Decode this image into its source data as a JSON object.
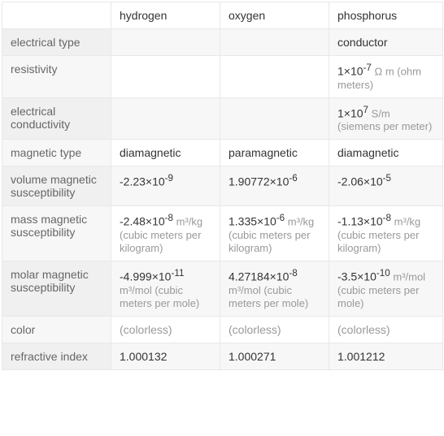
{
  "table": {
    "columns": [
      "",
      "hydrogen",
      "oxygen",
      "phosphorus"
    ],
    "rows": [
      {
        "label": "electrical type",
        "hydrogen": "",
        "oxygen": "",
        "phosphorus": "conductor"
      },
      {
        "label": "resistivity",
        "hydrogen": "",
        "oxygen": "",
        "phosphorus_val": "1×10",
        "phosphorus_exp": "-7",
        "phosphorus_unit": " Ω m (ohm meters)"
      },
      {
        "label": "electrical conductivity",
        "hydrogen": "",
        "oxygen": "",
        "phosphorus_val": "1×10",
        "phosphorus_exp": "7",
        "phosphorus_unit": " S/m (siemens per meter)"
      },
      {
        "label": "magnetic type",
        "hydrogen": "diamagnetic",
        "oxygen": "paramagnetic",
        "phosphorus": "diamagnetic"
      },
      {
        "label": "volume magnetic susceptibility",
        "hydrogen_val": "-2.23×10",
        "hydrogen_exp": "-9",
        "oxygen_val": "1.90772×10",
        "oxygen_exp": "-6",
        "phosphorus_val": "-2.06×10",
        "phosphorus_exp": "-5"
      },
      {
        "label": "mass magnetic susceptibility",
        "hydrogen_val": "-2.48×10",
        "hydrogen_exp": "-8",
        "hydrogen_unit": " m³/kg (cubic meters per kilogram)",
        "oxygen_val": "1.335×10",
        "oxygen_exp": "-6",
        "oxygen_unit": " m³/kg (cubic meters per kilogram)",
        "phosphorus_val": "-1.13×10",
        "phosphorus_exp": "-8",
        "phosphorus_unit": " m³/kg (cubic meters per kilogram)"
      },
      {
        "label": "molar magnetic susceptibility",
        "hydrogen_val": "-4.999×10",
        "hydrogen_exp": "-11",
        "hydrogen_unit": " m³/mol (cubic meters per mole)",
        "oxygen_val": "4.27184×10",
        "oxygen_exp": "-8",
        "oxygen_unit": " m³/mol (cubic meters per mole)",
        "phosphorus_val": "-3.5×10",
        "phosphorus_exp": "-10",
        "phosphorus_unit": " m³/mol (cubic meters per mole)"
      },
      {
        "label": "color",
        "hydrogen": " (colorless)",
        "oxygen": " (colorless)",
        "phosphorus": " (colorless)"
      },
      {
        "label": "refractive index",
        "hydrogen": "1.000132",
        "oxygen": "1.000271",
        "phosphorus": "1.001212"
      }
    ],
    "colors": {
      "border": "#e8e8e8",
      "text": "#333333",
      "header_text": "#666666",
      "unit_text": "#999999",
      "bg_odd": "#ffffff",
      "bg_even": "#f7f7f7"
    },
    "font_size": 14
  }
}
